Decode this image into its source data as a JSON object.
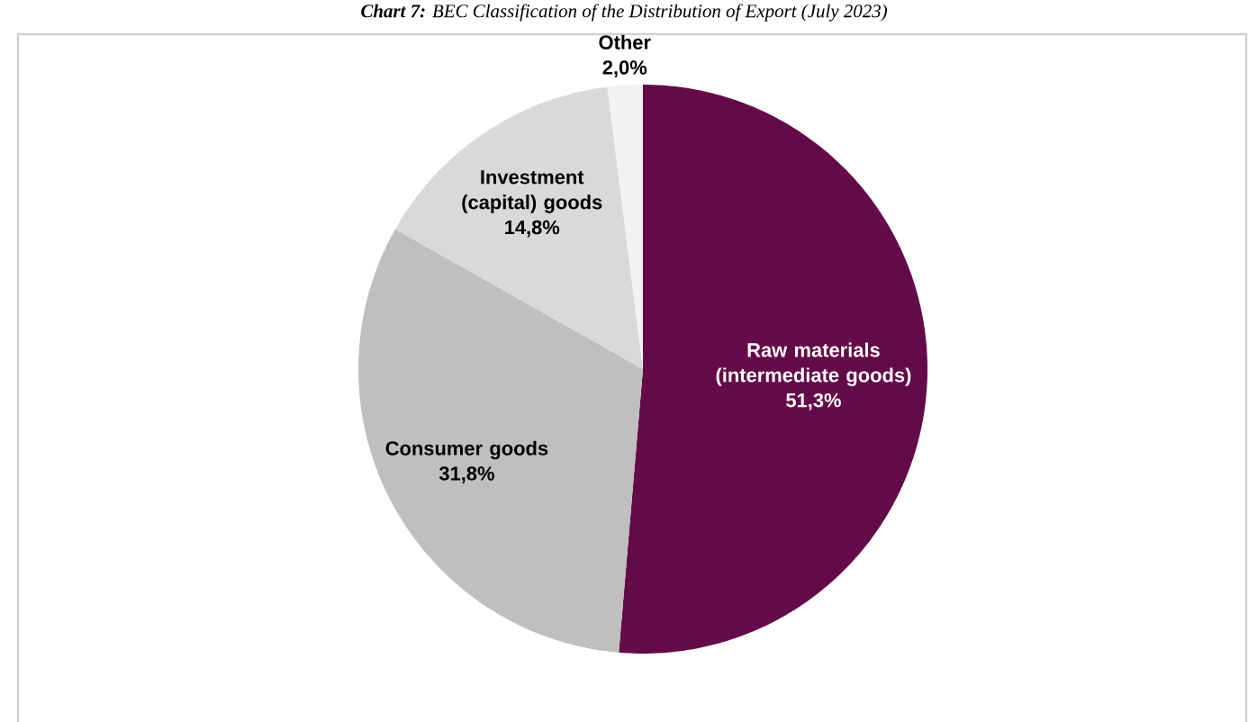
{
  "chart_data": {
    "type": "pie",
    "title": "**Chart 7:** BEC Classification of the Distribution of Export (July 2023)",
    "categories": [
      "Raw materials (intermediate goods)",
      "Consumer goods",
      "Investment (capital) goods",
      "Other"
    ],
    "values": [
      51.3,
      31.8,
      14.8,
      2.0
    ],
    "value_labels": [
      "51,3%",
      "31,8%",
      "14,8%",
      "2,0%"
    ],
    "colors": [
      "#650a48",
      "#bfbfbf",
      "#d9d9d9",
      "#f2f2f2"
    ]
  }
}
